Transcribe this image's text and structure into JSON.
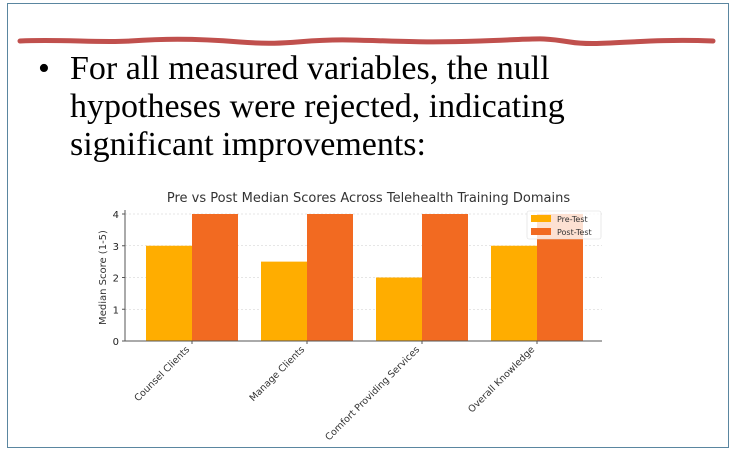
{
  "slide": {
    "bullet": "For all measured variables, the null hypotheses were rejected, indicating significant improvements:",
    "accent_line_color": "#c0504d",
    "border_color": "#5a86a0"
  },
  "chart_data": {
    "type": "bar",
    "title": "Pre vs Post Median Scores Across Telehealth Training Domains",
    "xlabel": "",
    "ylabel": "Median Score (1-5)",
    "ylim": [
      0,
      4
    ],
    "yticks": [
      "0",
      "1",
      "2",
      "3",
      "4"
    ],
    "grid": true,
    "legend_position": "top-right",
    "categories": [
      "Counsel Clients",
      "Manage Clients",
      "Comfort Providing Services",
      "Overall Knowledge"
    ],
    "series": [
      {
        "name": "Pre-Test",
        "values": [
          3,
          2.5,
          2,
          3
        ],
        "color": "#ffad00"
      },
      {
        "name": "Post-Test",
        "values": [
          4,
          4,
          4,
          4
        ],
        "color": "#f26a21"
      }
    ]
  }
}
